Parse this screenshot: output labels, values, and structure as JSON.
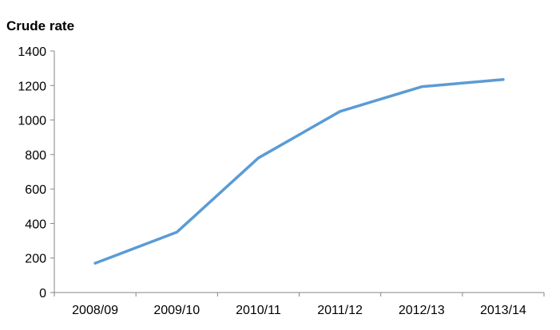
{
  "chart_data": {
    "type": "line",
    "title": "",
    "xlabel": "",
    "ylabel": "Crude rate",
    "categories": [
      "2008/09",
      "2009/10",
      "2010/11",
      "2011/12",
      "2012/13",
      "2013/14"
    ],
    "series": [
      {
        "values": [
          170,
          350,
          780,
          1050,
          1193,
          1235
        ]
      }
    ],
    "yticks": [
      "0",
      "200",
      "400",
      "600",
      "800",
      "1000",
      "1200",
      "1400"
    ],
    "ylim": [
      0,
      1400
    ],
    "grid": false,
    "legend": "none",
    "line_color": "#5B9BD5",
    "axis_color": "#868686"
  }
}
